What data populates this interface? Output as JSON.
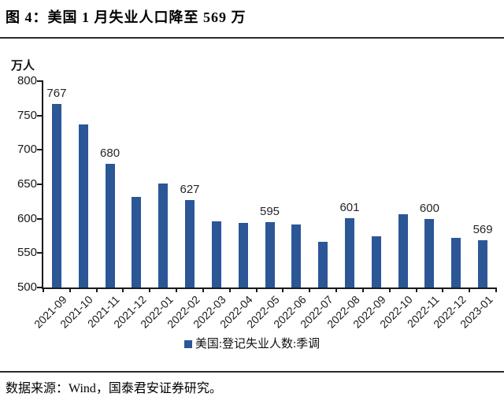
{
  "page": {
    "title": "图 4：美国 1 月失业人口降至 569 万",
    "source": "数据来源：Wind，国泰君安证券研究。"
  },
  "chart_data": {
    "type": "bar",
    "unit_label": "万人",
    "legend": "美国:登记失业人数:季调",
    "legend_position": "bottom-center",
    "categories": [
      "2021-09",
      "2021-10",
      "2021-11",
      "2021-12",
      "2022-01",
      "2022-02",
      "2022-03",
      "2022-04",
      "2022-05",
      "2022-06",
      "2022-07",
      "2022-08",
      "2022-09",
      "2022-10",
      "2022-11",
      "2022-12",
      "2023-01"
    ],
    "values": [
      767,
      737,
      680,
      632,
      651,
      627,
      596,
      594,
      595,
      592,
      567,
      601,
      575,
      606,
      600,
      572,
      569
    ],
    "data_labels": [
      {
        "category": "2021-09",
        "value": 767
      },
      {
        "category": "2021-11",
        "value": 680
      },
      {
        "category": "2022-02",
        "value": 627
      },
      {
        "category": "2022-05",
        "value": 595
      },
      {
        "category": "2022-08",
        "value": 601
      },
      {
        "category": "2022-11",
        "value": 600
      },
      {
        "category": "2023-01",
        "value": 569
      }
    ],
    "ylim": [
      500,
      800
    ],
    "yticks": [
      500,
      550,
      600,
      650,
      700,
      750,
      800
    ],
    "x_label_rotation": -45,
    "grid": false,
    "bar_color": "#2B5797",
    "axis_color": "#1A1A1A"
  }
}
